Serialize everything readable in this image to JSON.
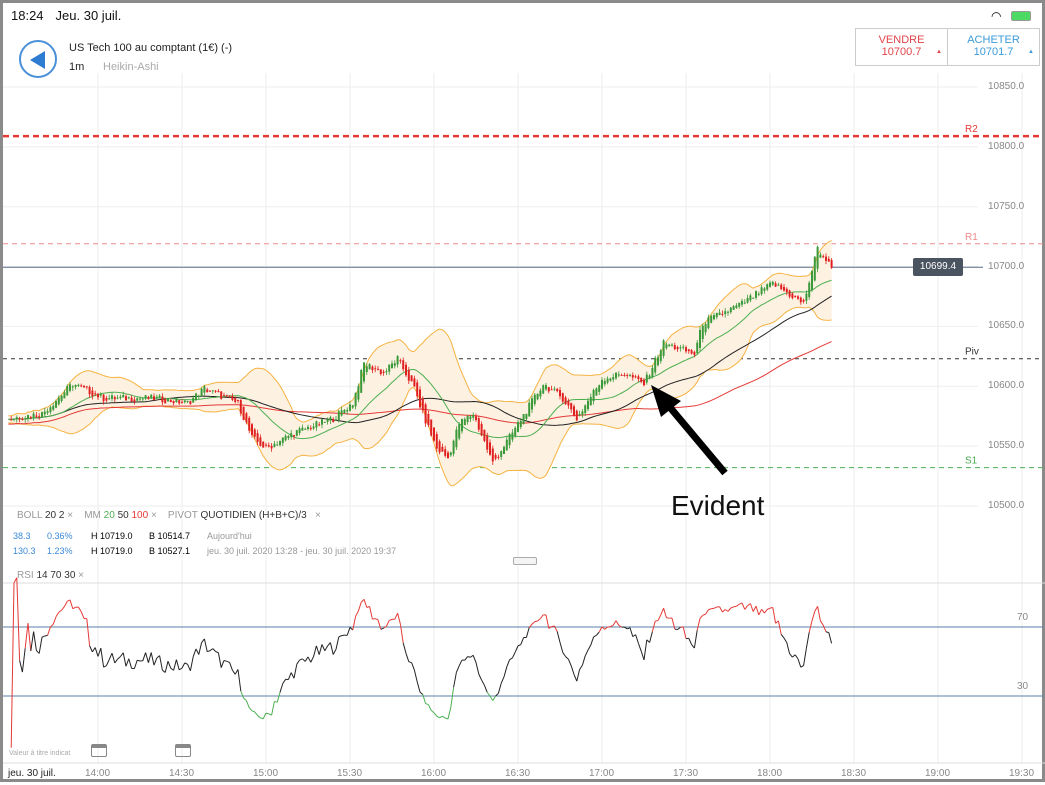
{
  "status": {
    "time": "18:24",
    "date": "Jeu. 30 juil."
  },
  "header": {
    "instrument": "US Tech 100 au comptant (1€) (-)",
    "timeframe": "1m",
    "chart_type": "Heikin-Ashi"
  },
  "trade": {
    "sell_label": "VENDRE",
    "sell_price": "10700.7",
    "buy_label": "ACHETER",
    "buy_price": "10701.7",
    "sell_color": "#e0444a",
    "buy_color": "#3a9ad9"
  },
  "price_axis": {
    "ticks": [
      "10850.0",
      "10800.0",
      "10750.0",
      "10700.0",
      "10650.0",
      "10600.0",
      "10550.0",
      "10500.0"
    ],
    "current": "10699.4"
  },
  "pivots": {
    "R2": {
      "label": "R2",
      "value": 10809
    },
    "R1": {
      "label": "R1",
      "value": 10719
    },
    "Piv": {
      "label": "Piv",
      "value": 10623
    },
    "S1": {
      "label": "S1",
      "value": 10532
    }
  },
  "legend": {
    "boll": "BOLL",
    "boll_p": "20",
    "boll_d": "2",
    "mm": "MM",
    "mm1": "20",
    "mm2": "50",
    "mm3": "100",
    "pivot": "PIVOT",
    "pivot_type": "QUOTIDIEN",
    "pivot_formula": "(H+B+C)/3",
    "close": "×"
  },
  "stats": [
    {
      "pts": "38.3",
      "pct": "0.36%",
      "h": "H 10719.0",
      "b": "B 10514.7",
      "range": "Aujourd'hui"
    },
    {
      "pts": "130.3",
      "pct": "1.23%",
      "h": "H 10719.0",
      "b": "B 10527.1",
      "range": "jeu. 30 juil. 2020 13:28 - jeu. 30 juil. 2020 19:37"
    }
  ],
  "rsi": {
    "label": "RSI",
    "p": "14",
    "hi": "70",
    "lo": "30",
    "close": "×",
    "ticks": [
      "70",
      "30"
    ]
  },
  "footer": {
    "disclaimer": "Valeur à titre indicat",
    "date": "jeu. 30 juil.",
    "times": [
      "14:00",
      "14:30",
      "15:00",
      "15:30",
      "16:00",
      "16:30",
      "17:00",
      "17:30",
      "18:00",
      "18:30",
      "19:00",
      "19:30"
    ]
  },
  "annotation": {
    "text": "Evident"
  },
  "chart_data": {
    "type": "candlestick",
    "price_range": [
      10500,
      10850
    ],
    "time_origin": "14:00",
    "price_path_minutes": [
      -32,
      -20,
      -9,
      2,
      20,
      32,
      38,
      50,
      55,
      60,
      70,
      84,
      91,
      95,
      102,
      107,
      113,
      116,
      121,
      125,
      129,
      134,
      141,
      148,
      159,
      166,
      171,
      180,
      188,
      195,
      202,
      213,
      216,
      230,
      241,
      252,
      257,
      262
    ],
    "price_path_values": [
      10573,
      10577,
      10602,
      10590,
      10590,
      10586,
      10598,
      10586,
      10557,
      10548,
      10561,
      10573,
      10586,
      10619,
      10611,
      10623,
      10598,
      10577,
      10548,
      10540,
      10569,
      10577,
      10536,
      10561,
      10602,
      10590,
      10573,
      10606,
      10611,
      10602,
      10636,
      10627,
      10653,
      10669,
      10686,
      10669,
      10715,
      10699
    ]
  }
}
